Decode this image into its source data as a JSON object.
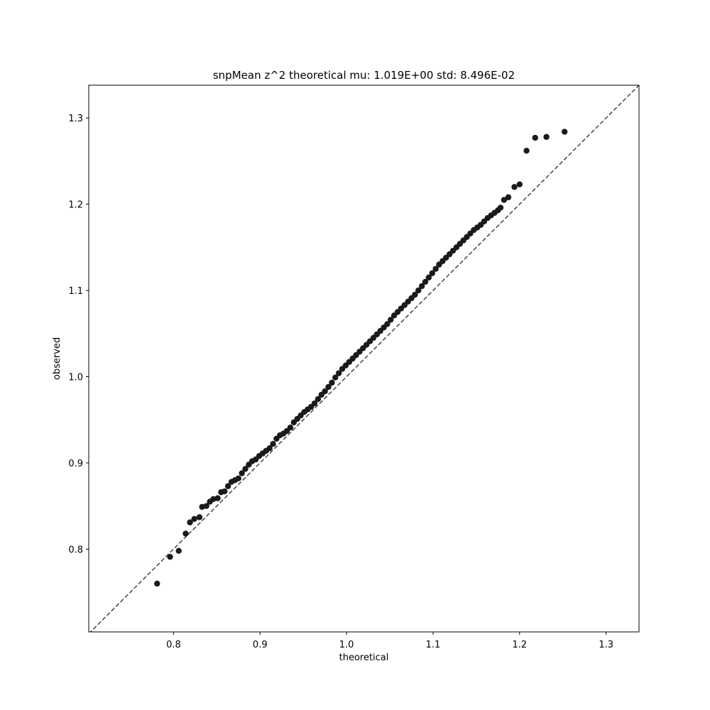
{
  "chart_data": {
    "type": "scatter",
    "title": "snpMean z^2 theoretical mu: 1.019E+00 std: 8.496E-02",
    "xlabel": "theoretical",
    "ylabel": "observed",
    "xlim": [
      0.702,
      1.338
    ],
    "ylim": [
      0.704,
      1.338
    ],
    "xticks": [
      "0.8",
      "0.9",
      "1.0",
      "1.1",
      "1.2",
      "1.3"
    ],
    "yticks": [
      "0.8",
      "0.9",
      "1.0",
      "1.1",
      "1.2",
      "1.3"
    ],
    "xtick_values": [
      0.8,
      0.9,
      1.0,
      1.1,
      1.2,
      1.3
    ],
    "ytick_values": [
      0.8,
      0.9,
      1.0,
      1.1,
      1.2,
      1.3
    ],
    "grid": false,
    "reference_line": {
      "style": "dashed",
      "slope": 1,
      "intercept": 0,
      "color": "#444444"
    },
    "marker_color": "#1a1a1a",
    "series": [
      {
        "x": [
          0.781,
          0.796,
          0.806,
          0.814,
          0.819,
          0.824,
          0.83,
          0.833,
          0.838,
          0.842,
          0.846,
          0.851,
          0.855,
          0.859,
          0.863,
          0.867,
          0.871,
          0.875,
          0.879,
          0.883,
          0.887,
          0.891,
          0.895,
          0.899,
          0.903,
          0.907,
          0.911,
          0.915,
          0.919,
          0.923,
          0.927,
          0.931,
          0.935,
          0.939,
          0.943,
          0.947,
          0.951,
          0.955,
          0.959,
          0.963,
          0.967,
          0.971,
          0.975,
          0.979,
          0.983,
          0.987,
          0.991,
          0.995,
          0.999,
          1.003,
          1.007,
          1.011,
          1.015,
          1.019,
          1.023,
          1.027,
          1.031,
          1.035,
          1.039,
          1.043,
          1.047,
          1.051,
          1.055,
          1.059,
          1.063,
          1.067,
          1.071,
          1.075,
          1.079,
          1.083,
          1.087,
          1.091,
          1.095,
          1.099,
          1.103,
          1.107,
          1.111,
          1.115,
          1.119,
          1.123,
          1.127,
          1.131,
          1.135,
          1.139,
          1.143,
          1.147,
          1.151,
          1.155,
          1.159,
          1.163,
          1.167,
          1.171,
          1.175,
          1.178,
          1.182,
          1.187,
          1.194,
          1.2,
          1.208,
          1.218,
          1.231,
          1.252
        ],
        "y": [
          0.76,
          0.791,
          0.798,
          0.818,
          0.831,
          0.835,
          0.837,
          0.849,
          0.85,
          0.855,
          0.858,
          0.859,
          0.866,
          0.867,
          0.873,
          0.878,
          0.88,
          0.882,
          0.888,
          0.893,
          0.898,
          0.902,
          0.904,
          0.908,
          0.911,
          0.914,
          0.917,
          0.922,
          0.928,
          0.932,
          0.934,
          0.937,
          0.941,
          0.947,
          0.951,
          0.955,
          0.959,
          0.962,
          0.965,
          0.969,
          0.974,
          0.979,
          0.983,
          0.988,
          0.993,
          0.999,
          1.004,
          1.009,
          1.013,
          1.017,
          1.021,
          1.025,
          1.029,
          1.033,
          1.037,
          1.041,
          1.045,
          1.049,
          1.053,
          1.057,
          1.061,
          1.066,
          1.071,
          1.075,
          1.079,
          1.083,
          1.087,
          1.091,
          1.095,
          1.1,
          1.105,
          1.11,
          1.115,
          1.12,
          1.125,
          1.13,
          1.134,
          1.138,
          1.142,
          1.146,
          1.15,
          1.154,
          1.158,
          1.162,
          1.166,
          1.17,
          1.173,
          1.176,
          1.18,
          1.184,
          1.187,
          1.19,
          1.193,
          1.196,
          1.205,
          1.208,
          1.22,
          1.223,
          1.262,
          1.277,
          1.278,
          1.284
        ]
      }
    ]
  }
}
